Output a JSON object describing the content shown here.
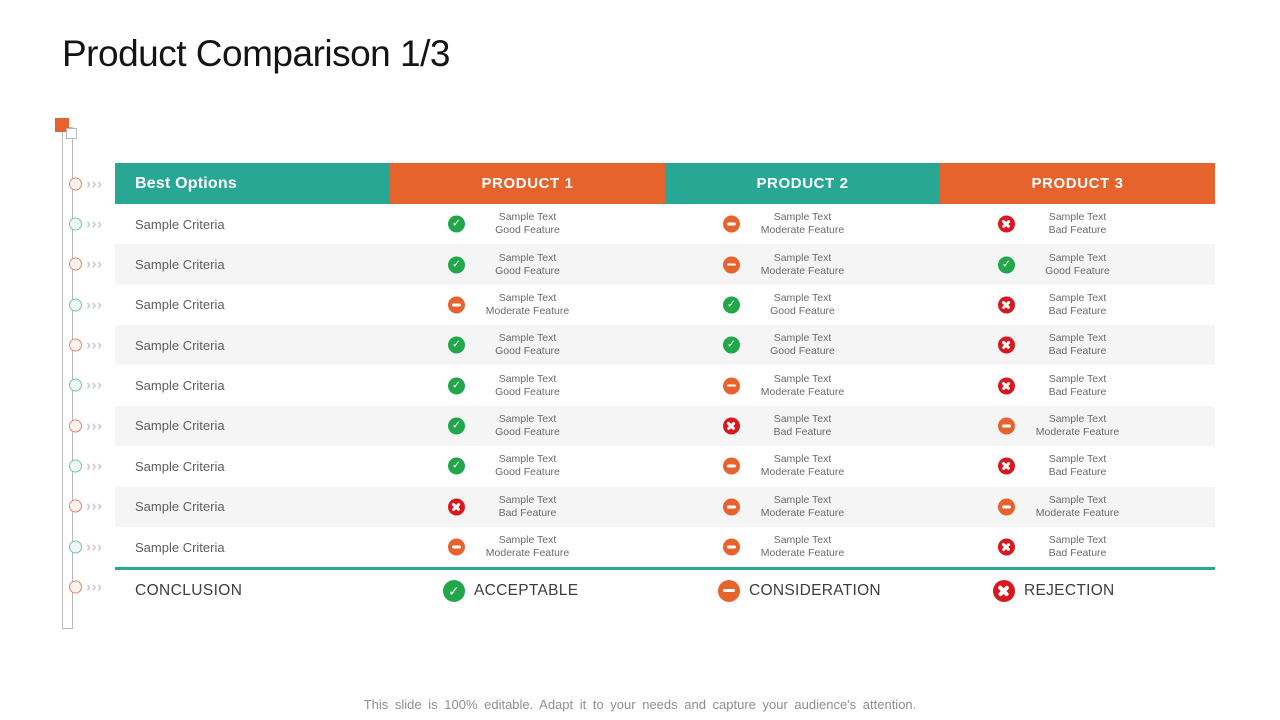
{
  "slide": {
    "title": "Product Comparison 1/3",
    "footer": "This slide is 100% editable. Adapt it to your needs and capture your audience's attention."
  },
  "colors": {
    "teal": "#29a795",
    "orange": "#e7632e",
    "green_status": "#22a64a",
    "red_status": "#d9171e",
    "alt_row": "#f5f5f6"
  },
  "table": {
    "header": [
      {
        "label": "Best Options",
        "color": "teal"
      },
      {
        "label": "PRODUCT 1",
        "color": "orange"
      },
      {
        "label": "PRODUCT 2",
        "color": "teal"
      },
      {
        "label": "PRODUCT 3",
        "color": "orange"
      }
    ],
    "rows": [
      {
        "criteria": "Sample Criteria",
        "cells": [
          {
            "status": "good",
            "line1": "Sample Text",
            "line2": "Good Feature"
          },
          {
            "status": "moderate",
            "line1": "Sample Text",
            "line2": "Moderate Feature"
          },
          {
            "status": "bad",
            "line1": "Sample Text",
            "line2": "Bad Feature"
          }
        ]
      },
      {
        "criteria": "Sample Criteria",
        "cells": [
          {
            "status": "good",
            "line1": "Sample Text",
            "line2": "Good Feature"
          },
          {
            "status": "moderate",
            "line1": "Sample Text",
            "line2": "Moderate Feature"
          },
          {
            "status": "good",
            "line1": "Sample Text",
            "line2": "Good Feature"
          }
        ]
      },
      {
        "criteria": "Sample Criteria",
        "cells": [
          {
            "status": "moderate",
            "line1": "Sample Text",
            "line2": "Moderate Feature"
          },
          {
            "status": "good",
            "line1": "Sample Text",
            "line2": "Good Feature"
          },
          {
            "status": "bad",
            "line1": "Sample Text",
            "line2": "Bad Feature"
          }
        ]
      },
      {
        "criteria": "Sample Criteria",
        "cells": [
          {
            "status": "good",
            "line1": "Sample Text",
            "line2": "Good Feature"
          },
          {
            "status": "good",
            "line1": "Sample Text",
            "line2": "Good Feature"
          },
          {
            "status": "bad",
            "line1": "Sample Text",
            "line2": "Bad Feature"
          }
        ]
      },
      {
        "criteria": "Sample Criteria",
        "cells": [
          {
            "status": "good",
            "line1": "Sample Text",
            "line2": "Good Feature"
          },
          {
            "status": "moderate",
            "line1": "Sample Text",
            "line2": "Moderate Feature"
          },
          {
            "status": "bad",
            "line1": "Sample Text",
            "line2": "Bad Feature"
          }
        ]
      },
      {
        "criteria": "Sample Criteria",
        "cells": [
          {
            "status": "good",
            "line1": "Sample Text",
            "line2": "Good Feature"
          },
          {
            "status": "bad",
            "line1": "Sample Text",
            "line2": "Bad Feature"
          },
          {
            "status": "moderate",
            "line1": "Sample Text",
            "line2": "Moderate Feature"
          }
        ]
      },
      {
        "criteria": "Sample Criteria",
        "cells": [
          {
            "status": "good",
            "line1": "Sample Text",
            "line2": "Good Feature"
          },
          {
            "status": "moderate",
            "line1": "Sample Text",
            "line2": "Moderate Feature"
          },
          {
            "status": "bad",
            "line1": "Sample Text",
            "line2": "Bad Feature"
          }
        ]
      },
      {
        "criteria": "Sample Criteria",
        "cells": [
          {
            "status": "bad",
            "line1": "Sample Text",
            "line2": "Bad Feature"
          },
          {
            "status": "moderate",
            "line1": "Sample Text",
            "line2": "Moderate Feature"
          },
          {
            "status": "moderate",
            "line1": "Sample Text",
            "line2": "Moderate Feature"
          }
        ]
      },
      {
        "criteria": "Sample Criteria",
        "cells": [
          {
            "status": "moderate",
            "line1": "Sample Text",
            "line2": "Moderate Feature"
          },
          {
            "status": "moderate",
            "line1": "Sample Text",
            "line2": "Moderate Feature"
          },
          {
            "status": "bad",
            "line1": "Sample Text",
            "line2": "Bad Feature"
          }
        ]
      }
    ],
    "conclusion": {
      "label": "CONCLUSION",
      "items": [
        {
          "status": "good",
          "label": "ACCEPTABLE"
        },
        {
          "status": "moderate",
          "label": "CONSIDERATION"
        },
        {
          "status": "bad",
          "label": "REJECTION"
        }
      ]
    }
  },
  "rail": {
    "chevrons": "›››",
    "markers": [
      {
        "color": "orange"
      },
      {
        "color": "teal"
      },
      {
        "color": "orange"
      },
      {
        "color": "teal"
      },
      {
        "color": "orange"
      },
      {
        "color": "teal"
      },
      {
        "color": "orange"
      },
      {
        "color": "teal"
      },
      {
        "color": "orange"
      },
      {
        "color": "teal"
      },
      {
        "color": "orange"
      }
    ]
  }
}
